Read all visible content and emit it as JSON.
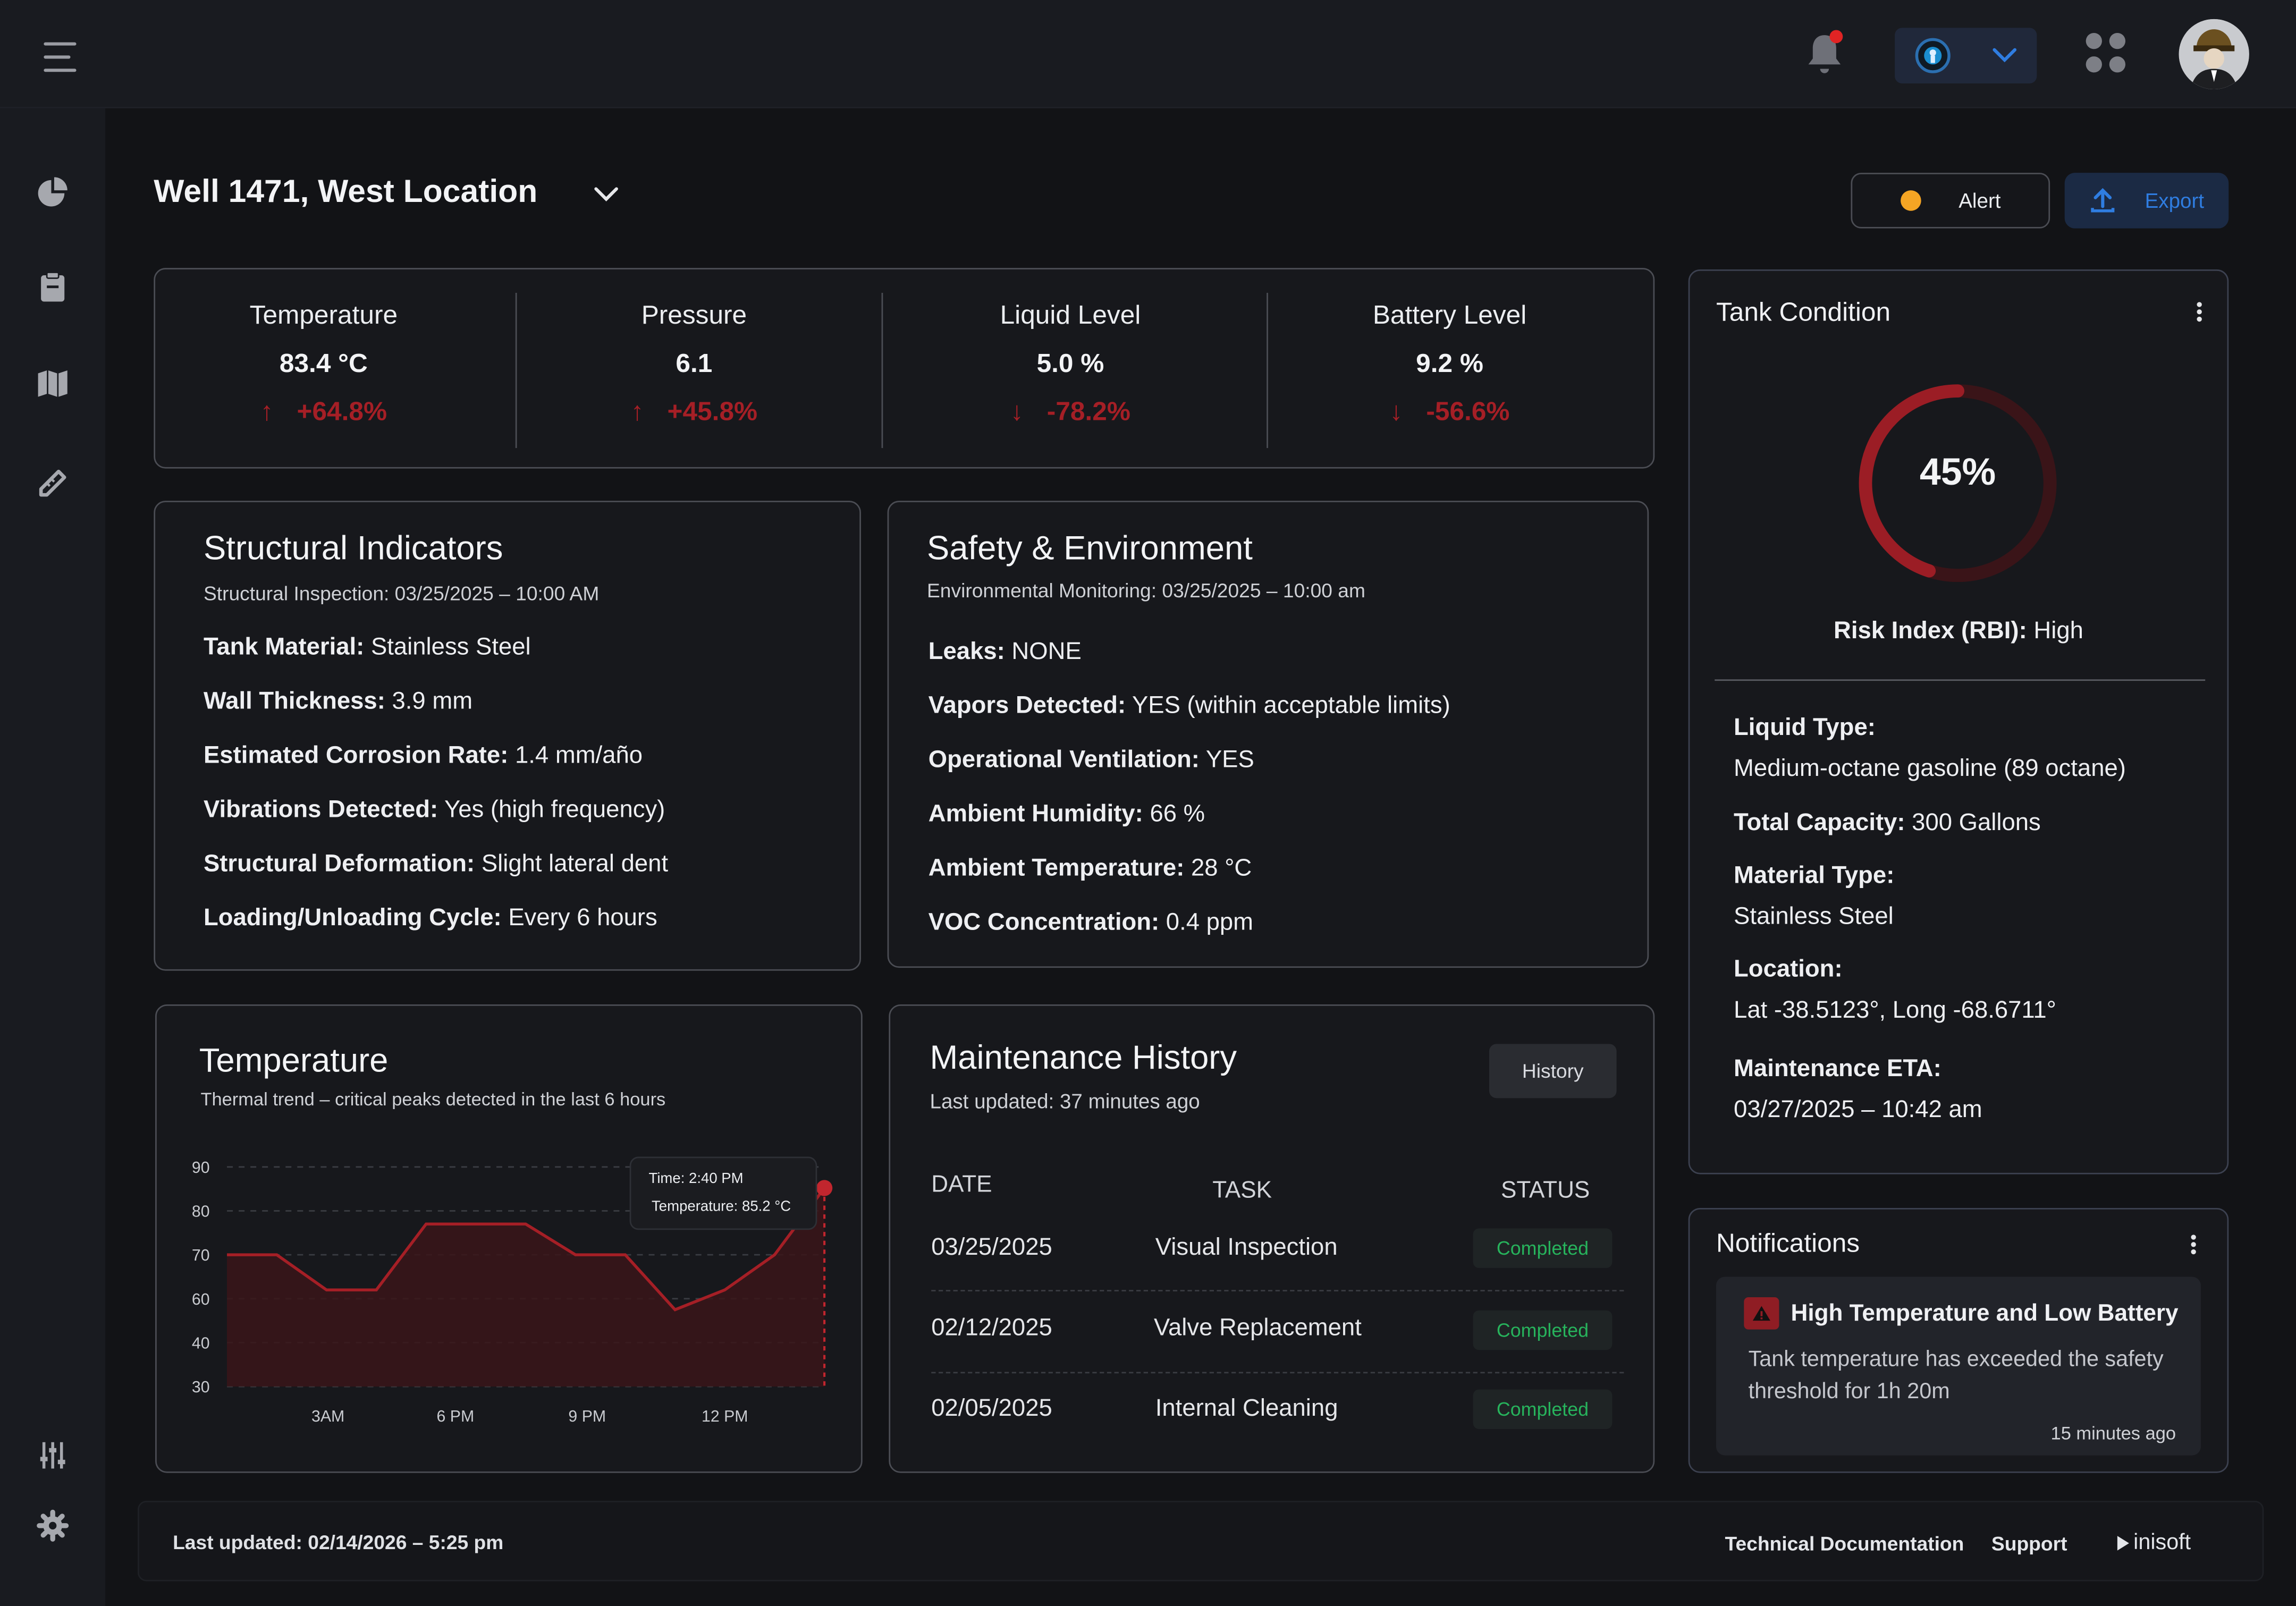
{
  "header": {
    "org_icon": "globe-icon",
    "avatar_icon": "avatar-icon"
  },
  "page": {
    "title": "Well 1471, West Location",
    "alert_label": "Alert",
    "export_label": "Export"
  },
  "stats": [
    {
      "label": "Temperature",
      "value": "83.4 °C",
      "change": "+64.8%",
      "direction": "up"
    },
    {
      "label": "Pressure",
      "value": "6.1",
      "change": "+45.8%",
      "direction": "up"
    },
    {
      "label": "Liquid Level",
      "value": "5.0 %",
      "change": "-78.2%",
      "direction": "down"
    },
    {
      "label": "Battery Level",
      "value": "9.2 %",
      "change": "-56.6%",
      "direction": "down"
    }
  ],
  "structural": {
    "title": "Structural Indicators",
    "subtitle": "Structural Inspection: 03/25/2025 – 10:00 AM",
    "items": [
      {
        "k": "Tank Material:",
        "v": "Stainless Steel"
      },
      {
        "k": "Wall Thickness:",
        "v": "3.9 mm"
      },
      {
        "k": "Estimated Corrosion Rate:",
        "v": "1.4 mm/año"
      },
      {
        "k": "Vibrations Detected:",
        "v": "Yes (high frequency)"
      },
      {
        "k": "Structural Deformation:",
        "v": "Slight lateral dent"
      },
      {
        "k": "Loading/Unloading Cycle:",
        "v": "Every 6 hours"
      }
    ]
  },
  "safety": {
    "title": "Safety & Environment",
    "subtitle": "Environmental Monitoring: 03/25/2025 – 10:00 am",
    "items": [
      {
        "k": "Leaks:",
        "v": "NONE"
      },
      {
        "k": "Vapors Detected:",
        "v": "YES (within acceptable limits)"
      },
      {
        "k": "Operational Ventilation:",
        "v": "YES"
      },
      {
        "k": "Ambient Humidity:",
        "v": "66 %"
      },
      {
        "k": "Ambient Temperature:",
        "v": "28 °C"
      },
      {
        "k": "VOC Concentration:",
        "v": "0.4 ppm"
      }
    ]
  },
  "tank": {
    "title": "Tank Condition",
    "percent_label": "45%",
    "percent": 45,
    "rbi_label": "Risk Index (RBI):",
    "rbi_value": "High",
    "details": [
      {
        "k": "Liquid Type:",
        "v": "Medium-octane gasoline (89 octane)"
      },
      {
        "k": "Total Capacity:",
        "v": "300 Gallons"
      },
      {
        "k": "Material Type:",
        "v": "Stainless Steel"
      },
      {
        "k": "Location:",
        "v": "Lat -38.5123°, Long -68.6711°"
      },
      {
        "k": "Maintenance ETA:",
        "v": "03/27/2025 – 10:42 am"
      }
    ]
  },
  "temperature_chart": {
    "title": "Temperature",
    "subtitle": "Thermal trend – critical peaks detected in the last 6 hours",
    "tooltip_time": "Time: 2:40 PM",
    "tooltip_temp": "Temperature: 85.2 °C"
  },
  "chart_data": {
    "type": "area",
    "title": "Temperature",
    "xlabel": "",
    "ylabel": "",
    "y_ticks": [
      90,
      80,
      70,
      60,
      40,
      30
    ],
    "x_ticks": [
      "3AM",
      "6 PM",
      "9 PM",
      "12 PM"
    ],
    "series": [
      {
        "name": "Temperature",
        "values": [
          70,
          70,
          62,
          62,
          77,
          77,
          77,
          70,
          70,
          55,
          62,
          70,
          85.2
        ]
      }
    ],
    "highlight_index": 12
  },
  "maintenance": {
    "title": "Maintenance History",
    "subtitle": "Last updated: 37 minutes ago",
    "history_button": "History",
    "columns": [
      "DATE",
      "TASK",
      "STATUS"
    ],
    "rows": [
      {
        "date": "03/25/2025",
        "task": "Visual Inspection",
        "status": "Completed"
      },
      {
        "date": "02/12/2025",
        "task": "Valve Replacement",
        "status": "Completed"
      },
      {
        "date": "02/05/2025",
        "task": "Internal Cleaning",
        "status": "Completed"
      }
    ]
  },
  "notifications": {
    "title": "Notifications",
    "item_title": "High Temperature and Low Battery",
    "item_body": "Tank temperature has exceeded the safety threshold for 1h 20m",
    "item_time": "15 minutes ago"
  },
  "footer": {
    "last_updated": "Last updated: 02/14/2026 – 5:25 pm",
    "tech_docs": "Technical Documentation",
    "support": "Support",
    "brand": "inisoft"
  },
  "colors": {
    "accent_blue": "#2f7de1",
    "danger": "#a51f26",
    "success": "#27b35c",
    "alert_dot": "#f5a524"
  }
}
